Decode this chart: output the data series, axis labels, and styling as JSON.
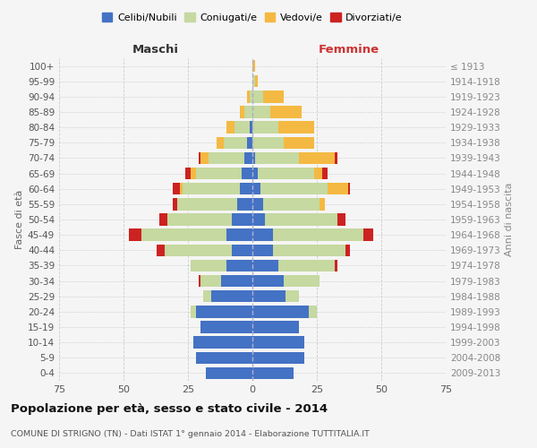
{
  "age_groups": [
    "0-4",
    "5-9",
    "10-14",
    "15-19",
    "20-24",
    "25-29",
    "30-34",
    "35-39",
    "40-44",
    "45-49",
    "50-54",
    "55-59",
    "60-64",
    "65-69",
    "70-74",
    "75-79",
    "80-84",
    "85-89",
    "90-94",
    "95-99",
    "100+"
  ],
  "birth_years": [
    "2009-2013",
    "2004-2008",
    "1999-2003",
    "1994-1998",
    "1989-1993",
    "1984-1988",
    "1979-1983",
    "1974-1978",
    "1969-1973",
    "1964-1968",
    "1959-1963",
    "1954-1958",
    "1949-1953",
    "1944-1948",
    "1939-1943",
    "1934-1938",
    "1929-1933",
    "1924-1928",
    "1919-1923",
    "1914-1918",
    "≤ 1913"
  ],
  "colors": {
    "celibi": "#4472C4",
    "coniugati": "#C5D9A0",
    "vedovi": "#F4B942",
    "divorziati": "#CC2222"
  },
  "maschi": {
    "celibi": [
      18,
      22,
      23,
      20,
      22,
      16,
      12,
      10,
      8,
      10,
      8,
      6,
      5,
      4,
      3,
      2,
      1,
      0,
      0,
      0,
      0
    ],
    "coniugati": [
      0,
      0,
      0,
      0,
      2,
      3,
      8,
      14,
      26,
      33,
      25,
      23,
      22,
      18,
      14,
      9,
      6,
      3,
      1,
      0,
      0
    ],
    "vedovi": [
      0,
      0,
      0,
      0,
      0,
      0,
      0,
      0,
      0,
      0,
      0,
      0,
      1,
      2,
      3,
      3,
      3,
      2,
      1,
      0,
      0
    ],
    "divorziati": [
      0,
      0,
      0,
      0,
      0,
      0,
      1,
      0,
      3,
      5,
      3,
      2,
      3,
      2,
      1,
      0,
      0,
      0,
      0,
      0,
      0
    ]
  },
  "femmine": {
    "celibi": [
      16,
      20,
      20,
      18,
      22,
      13,
      12,
      10,
      8,
      8,
      5,
      4,
      3,
      2,
      1,
      0,
      0,
      0,
      0,
      0,
      0
    ],
    "coniugati": [
      0,
      0,
      0,
      0,
      3,
      5,
      14,
      22,
      28,
      35,
      28,
      22,
      26,
      22,
      17,
      12,
      10,
      7,
      4,
      1,
      0
    ],
    "vedovi": [
      0,
      0,
      0,
      0,
      0,
      0,
      0,
      0,
      0,
      0,
      0,
      2,
      8,
      3,
      14,
      12,
      14,
      12,
      8,
      1,
      1
    ],
    "divorziati": [
      0,
      0,
      0,
      0,
      0,
      0,
      0,
      1,
      2,
      4,
      3,
      0,
      1,
      2,
      1,
      0,
      0,
      0,
      0,
      0,
      0
    ]
  },
  "xlim": 75,
  "title": "Popolazione per età, sesso e stato civile - 2014",
  "subtitle": "COMUNE DI STRIGNO (TN) - Dati ISTAT 1° gennaio 2014 - Elaborazione TUTTITALIA.IT",
  "ylabel_left": "Fasce di età",
  "ylabel_right": "Anni di nascita",
  "xlabel_left": "Maschi",
  "xlabel_right": "Femmine",
  "legend_labels": [
    "Celibi/Nubili",
    "Coniugati/e",
    "Vedovi/e",
    "Divorziati/e"
  ],
  "bg_color": "#f5f5f5",
  "grid_color": "#cccccc"
}
